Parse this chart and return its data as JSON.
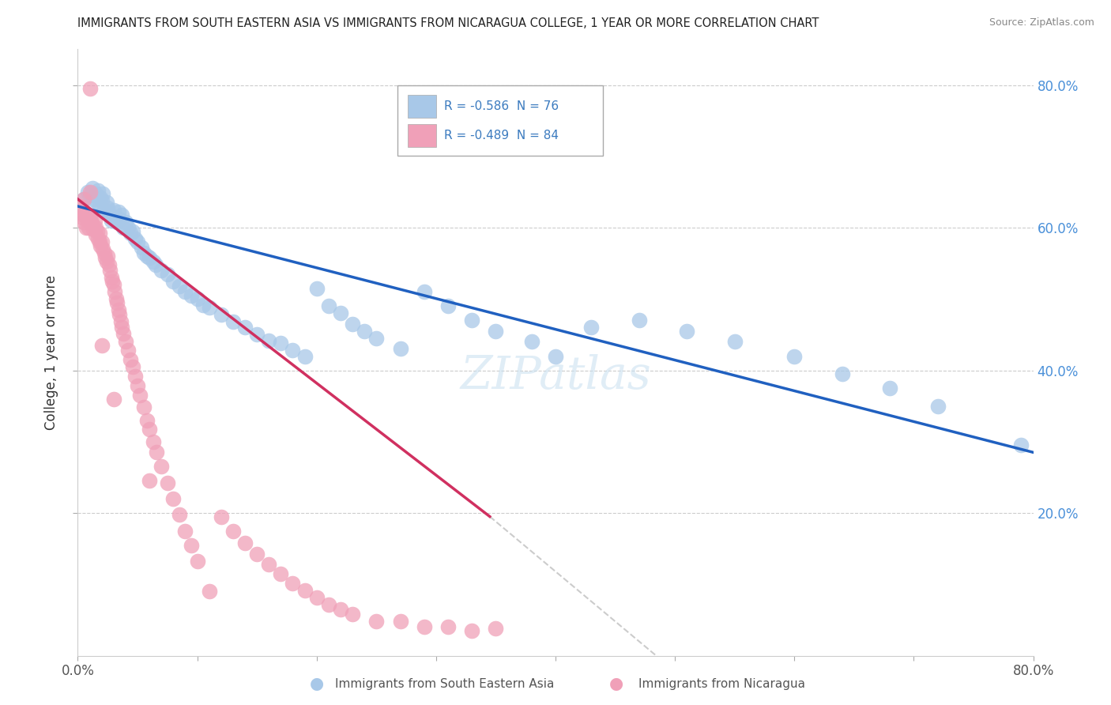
{
  "title": "IMMIGRANTS FROM SOUTH EASTERN ASIA VS IMMIGRANTS FROM NICARAGUA COLLEGE, 1 YEAR OR MORE CORRELATION CHART",
  "source": "Source: ZipAtlas.com",
  "ylabel": "College, 1 year or more",
  "xlim": [
    0.0,
    0.8
  ],
  "ylim": [
    0.0,
    0.85
  ],
  "legend_r1": "-0.586",
  "legend_n1": "76",
  "legend_r2": "-0.489",
  "legend_n2": "84",
  "legend_label1": "Immigrants from South Eastern Asia",
  "legend_label2": "Immigrants from Nicaragua",
  "color_blue": "#a8c8e8",
  "color_pink": "#f0a0b8",
  "line_blue": "#2060c0",
  "line_pink": "#d03060",
  "line_dash": "#cccccc",
  "watermark": "ZIPatlas",
  "blue_x": [
    0.005,
    0.008,
    0.01,
    0.012,
    0.013,
    0.015,
    0.016,
    0.017,
    0.018,
    0.019,
    0.02,
    0.021,
    0.022,
    0.024,
    0.025,
    0.026,
    0.027,
    0.028,
    0.03,
    0.031,
    0.033,
    0.034,
    0.035,
    0.037,
    0.038,
    0.04,
    0.042,
    0.044,
    0.046,
    0.048,
    0.05,
    0.053,
    0.055,
    0.058,
    0.06,
    0.063,
    0.065,
    0.07,
    0.075,
    0.08,
    0.085,
    0.09,
    0.095,
    0.1,
    0.105,
    0.11,
    0.12,
    0.13,
    0.14,
    0.15,
    0.16,
    0.17,
    0.18,
    0.19,
    0.2,
    0.21,
    0.22,
    0.23,
    0.24,
    0.25,
    0.27,
    0.29,
    0.31,
    0.33,
    0.35,
    0.38,
    0.4,
    0.43,
    0.47,
    0.51,
    0.55,
    0.6,
    0.64,
    0.68,
    0.72,
    0.79
  ],
  "blue_y": [
    0.64,
    0.65,
    0.645,
    0.655,
    0.64,
    0.648,
    0.635,
    0.652,
    0.63,
    0.642,
    0.638,
    0.648,
    0.625,
    0.635,
    0.628,
    0.62,
    0.618,
    0.61,
    0.625,
    0.615,
    0.608,
    0.622,
    0.612,
    0.618,
    0.6,
    0.608,
    0.6,
    0.592,
    0.595,
    0.585,
    0.58,
    0.572,
    0.565,
    0.56,
    0.558,
    0.552,
    0.548,
    0.54,
    0.535,
    0.525,
    0.518,
    0.51,
    0.505,
    0.5,
    0.492,
    0.488,
    0.478,
    0.468,
    0.46,
    0.45,
    0.442,
    0.438,
    0.428,
    0.42,
    0.515,
    0.49,
    0.48,
    0.465,
    0.455,
    0.445,
    0.43,
    0.51,
    0.49,
    0.47,
    0.455,
    0.44,
    0.42,
    0.46,
    0.47,
    0.455,
    0.44,
    0.42,
    0.395,
    0.375,
    0.35,
    0.295
  ],
  "pink_x": [
    0.002,
    0.003,
    0.004,
    0.005,
    0.005,
    0.006,
    0.007,
    0.007,
    0.008,
    0.009,
    0.01,
    0.01,
    0.011,
    0.012,
    0.013,
    0.014,
    0.015,
    0.015,
    0.016,
    0.017,
    0.018,
    0.018,
    0.019,
    0.02,
    0.021,
    0.022,
    0.023,
    0.024,
    0.025,
    0.026,
    0.027,
    0.028,
    0.029,
    0.03,
    0.031,
    0.032,
    0.033,
    0.034,
    0.035,
    0.036,
    0.037,
    0.038,
    0.04,
    0.042,
    0.044,
    0.046,
    0.048,
    0.05,
    0.052,
    0.055,
    0.058,
    0.06,
    0.063,
    0.066,
    0.07,
    0.075,
    0.08,
    0.085,
    0.09,
    0.095,
    0.1,
    0.11,
    0.12,
    0.13,
    0.14,
    0.15,
    0.16,
    0.17,
    0.18,
    0.19,
    0.2,
    0.21,
    0.22,
    0.23,
    0.25,
    0.27,
    0.29,
    0.31,
    0.33,
    0.35,
    0.01,
    0.02,
    0.03,
    0.06
  ],
  "pink_y": [
    0.63,
    0.62,
    0.615,
    0.64,
    0.608,
    0.62,
    0.615,
    0.6,
    0.61,
    0.6,
    0.65,
    0.615,
    0.61,
    0.605,
    0.598,
    0.61,
    0.6,
    0.59,
    0.595,
    0.585,
    0.58,
    0.592,
    0.575,
    0.58,
    0.57,
    0.565,
    0.558,
    0.552,
    0.56,
    0.548,
    0.54,
    0.53,
    0.525,
    0.52,
    0.51,
    0.5,
    0.495,
    0.485,
    0.478,
    0.468,
    0.46,
    0.452,
    0.44,
    0.428,
    0.415,
    0.405,
    0.392,
    0.378,
    0.365,
    0.348,
    0.33,
    0.318,
    0.3,
    0.285,
    0.265,
    0.242,
    0.22,
    0.198,
    0.175,
    0.155,
    0.132,
    0.09,
    0.195,
    0.175,
    0.158,
    0.142,
    0.128,
    0.115,
    0.102,
    0.092,
    0.082,
    0.072,
    0.065,
    0.058,
    0.048,
    0.048,
    0.04,
    0.04,
    0.035,
    0.038,
    0.795,
    0.435,
    0.36,
    0.245
  ]
}
